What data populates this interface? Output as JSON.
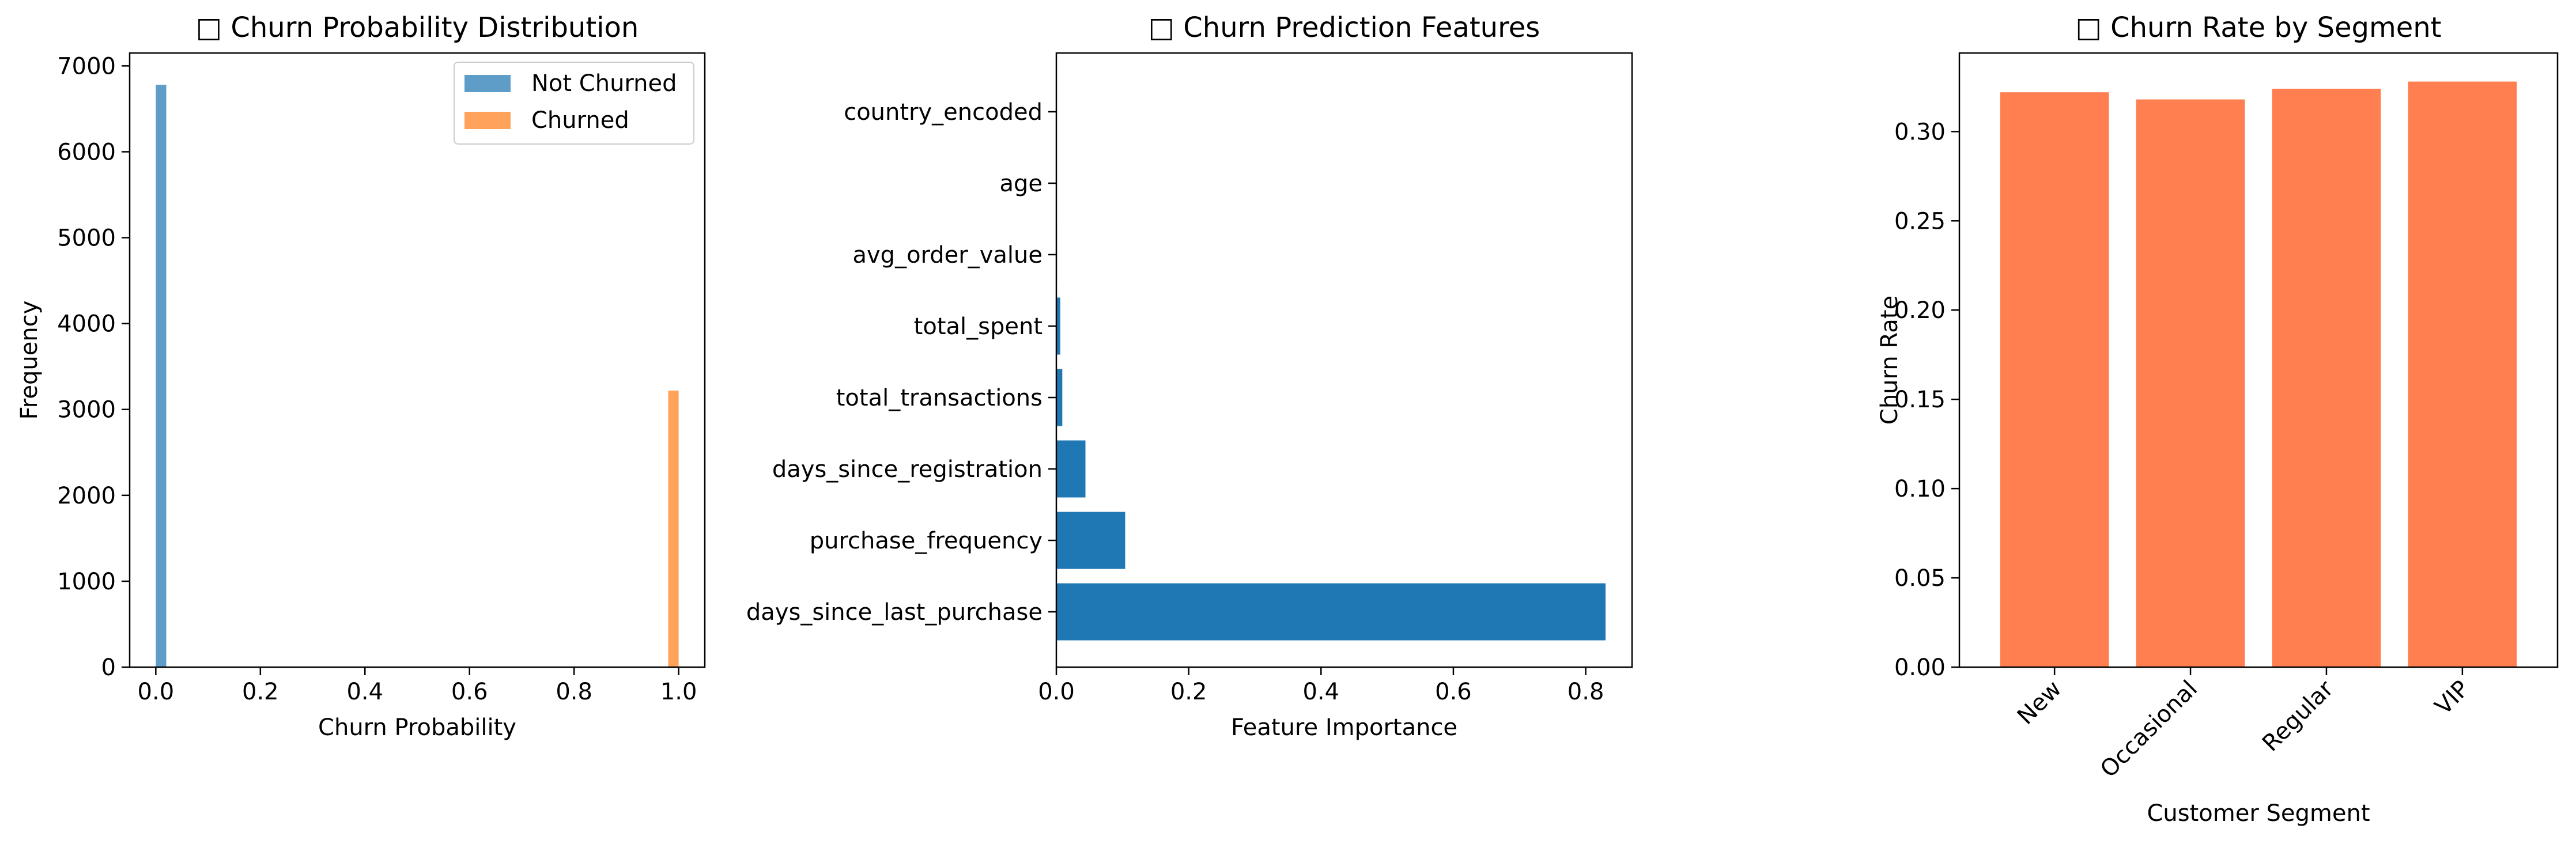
{
  "chart_data": [
    {
      "type": "bar",
      "subtype": "histogram",
      "title": "□ Churn Probability Distribution",
      "xlabel": "Churn Probability",
      "ylabel": "Frequency",
      "xlim": [
        -0.05,
        1.05
      ],
      "ylim": [
        0,
        7150
      ],
      "xticks": [
        0.0,
        0.2,
        0.4,
        0.6,
        0.8,
        1.0
      ],
      "xtick_labels": [
        "0.0",
        "0.2",
        "0.4",
        "0.6",
        "0.8",
        "1.0"
      ],
      "yticks": [
        0,
        1000,
        2000,
        3000,
        4000,
        5000,
        6000,
        7000
      ],
      "ytick_labels": [
        "0",
        "1000",
        "2000",
        "3000",
        "4000",
        "5000",
        "6000",
        "7000"
      ],
      "grid": false,
      "legend": "top-right",
      "series": [
        {
          "name": "Not Churned",
          "color": "#5f9dc9",
          "bins": [
            {
              "x0": 0.0,
              "x1": 0.02,
              "value": 6780
            }
          ]
        },
        {
          "name": "Churned",
          "color": "#ffa35c",
          "bins": [
            {
              "x0": 0.98,
              "x1": 1.0,
              "value": 3220
            }
          ]
        }
      ]
    },
    {
      "type": "bar",
      "orientation": "horizontal",
      "title": "□ Churn Prediction Features",
      "xlabel": "Feature Importance",
      "ylabel": "",
      "xlim": [
        0,
        0.87
      ],
      "xticks": [
        0.0,
        0.2,
        0.4,
        0.6,
        0.8
      ],
      "xtick_labels": [
        "0.0",
        "0.2",
        "0.4",
        "0.6",
        "0.8"
      ],
      "grid": false,
      "color": "#1f77b4",
      "categories": [
        "days_since_last_purchase",
        "purchase_frequency",
        "days_since_registration",
        "total_transactions",
        "total_spent",
        "avg_order_value",
        "age",
        "country_encoded"
      ],
      "values": [
        0.83,
        0.104,
        0.044,
        0.009,
        0.006,
        0.001,
        0.0005,
        0.0003
      ]
    },
    {
      "type": "bar",
      "title": "□ Churn Rate by Segment",
      "xlabel": "Customer Segment",
      "ylabel": "Churn Rate",
      "ylim": [
        0,
        0.344
      ],
      "yticks": [
        0.0,
        0.05,
        0.1,
        0.15,
        0.2,
        0.25,
        0.3
      ],
      "ytick_labels": [
        "0.00",
        "0.05",
        "0.10",
        "0.15",
        "0.20",
        "0.25",
        "0.30"
      ],
      "grid": false,
      "color": "#ff7f50",
      "categories": [
        "New",
        "Occasional",
        "Regular",
        "VIP"
      ],
      "values": [
        0.322,
        0.318,
        0.324,
        0.328
      ]
    }
  ]
}
